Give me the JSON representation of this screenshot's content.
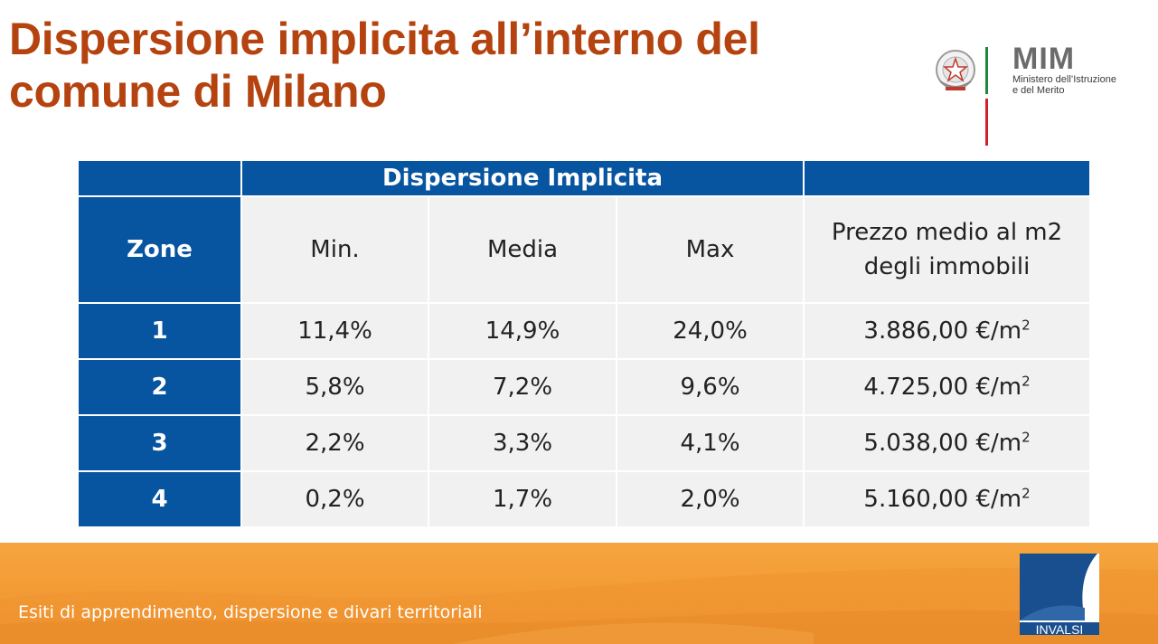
{
  "title": {
    "line1": "Dispersione implicita all’interno del",
    "line2": "comune di Milano"
  },
  "logo": {
    "acronym": "MIM",
    "line1": "Ministero dell’Istruzione",
    "line2": "e del Merito",
    "flag_colors": [
      "#1b8a3b",
      "#ffffff",
      "#d3202a"
    ]
  },
  "table": {
    "group_header": "Dispersione Implicita",
    "columns": {
      "zone": "Zone",
      "min": "Min.",
      "media": "Media",
      "max": "Max",
      "price_line1": "Prezzo medio al m2",
      "price_line2": "degli immobili"
    },
    "rows": [
      {
        "zone": "1",
        "min": "11,4%",
        "media": "14,9%",
        "max": "24,0%",
        "price": "3.886,00 €/m",
        "unit_exp": "2"
      },
      {
        "zone": "2",
        "min": "5,8%",
        "media": "7,2%",
        "max": "9,6%",
        "price": "4.725,00 €/m",
        "unit_exp": "2"
      },
      {
        "zone": "3",
        "min": "2,2%",
        "media": "3,3%",
        "max": "4,1%",
        "price": "5.038,00 €/m",
        "unit_exp": "2"
      },
      {
        "zone": "4",
        "min": "0,2%",
        "media": "1,7%",
        "max": "2,0%",
        "price": "5.160,00 €/m",
        "unit_exp": "2"
      }
    ]
  },
  "footer": {
    "text": "Esiti di apprendimento, dispersione e divari territoriali",
    "logo_label": "INVALSI"
  },
  "colors": {
    "title": "#b5430f",
    "table_header": "#0755a0",
    "footer": "#f29a35"
  }
}
